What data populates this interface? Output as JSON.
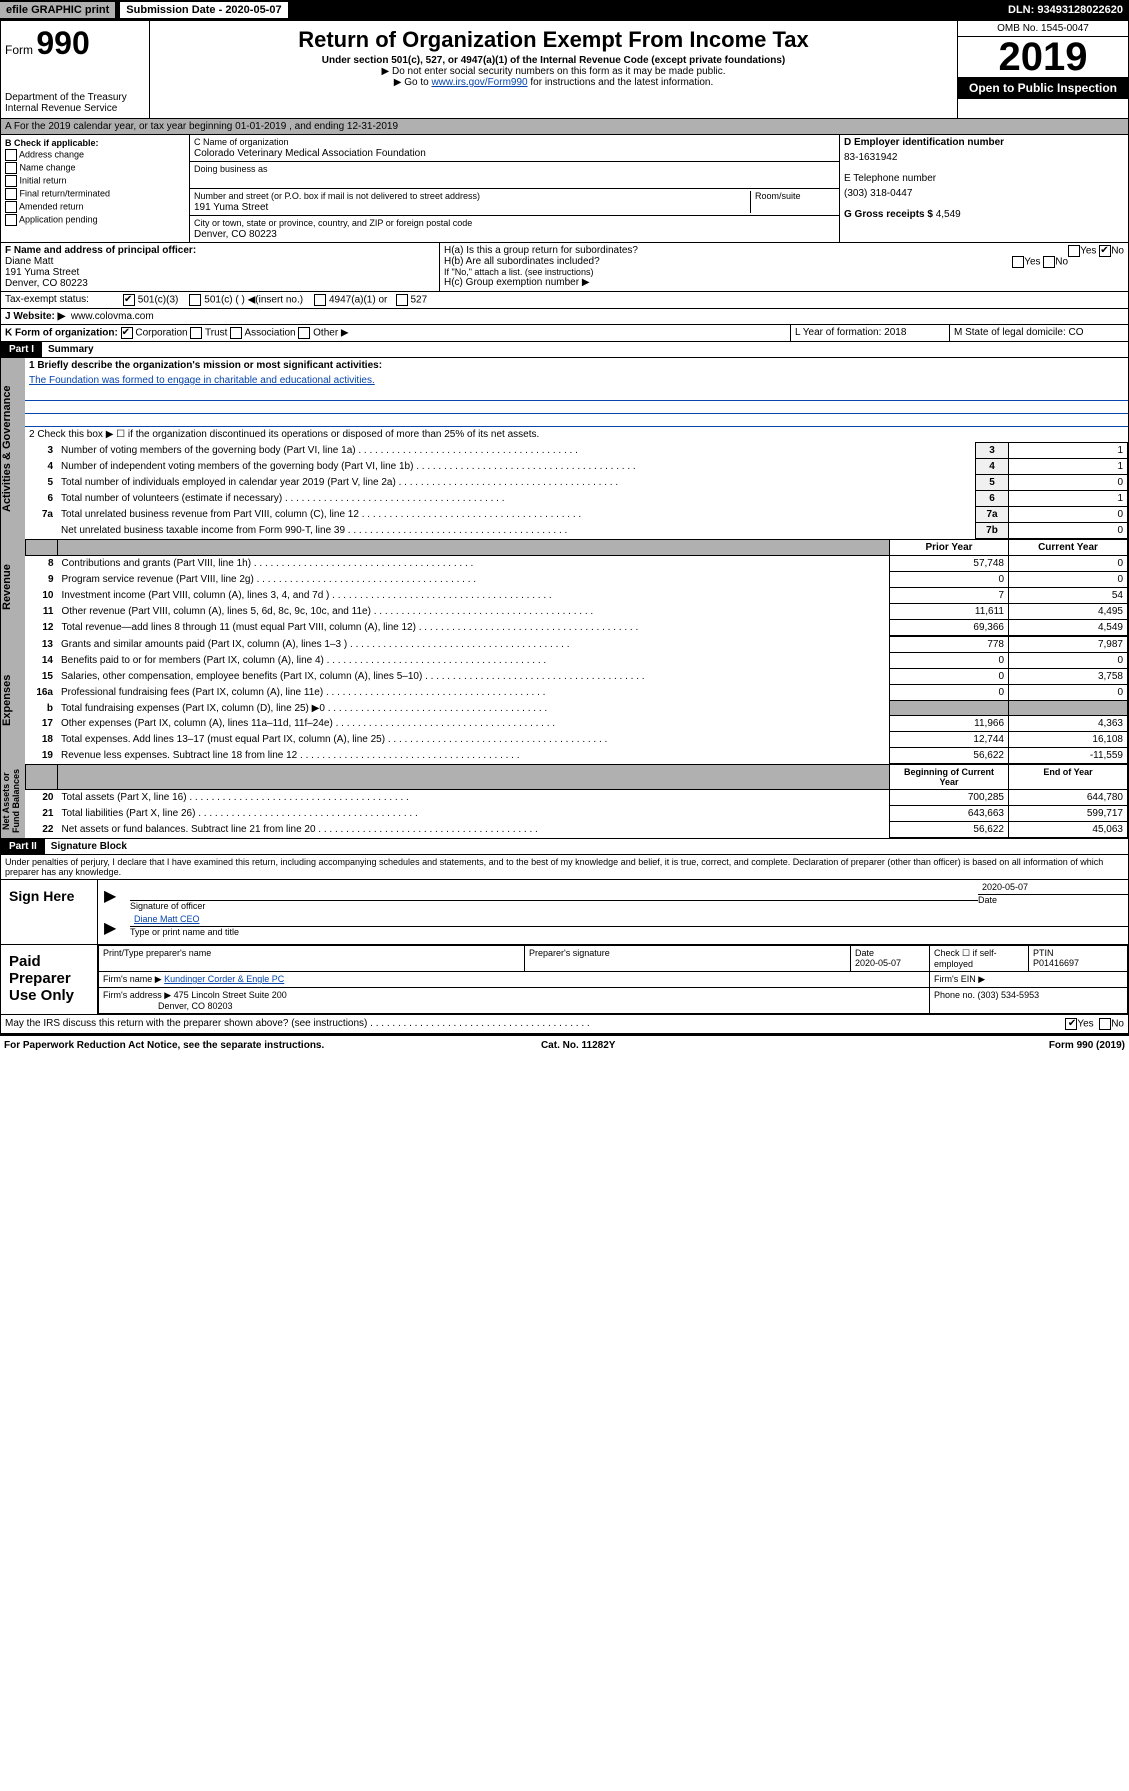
{
  "topbar": {
    "efile": "efile GRAPHIC print",
    "sub": "Submission Date - 2020-05-07",
    "dln": "DLN: 93493128022620"
  },
  "header": {
    "form": "Form",
    "num": "990",
    "dept": "Department of the Treasury\nInternal Revenue Service",
    "title": "Return of Organization Exempt From Income Tax",
    "sub1": "Under section 501(c), 527, or 4947(a)(1) of the Internal Revenue Code (except private foundations)",
    "sub2": "▶ Do not enter social security numbers on this form as it may be made public.",
    "sub3": "▶ Go to www.irs.gov/Form990 for instructions and the latest information.",
    "omb": "OMB No. 1545-0047",
    "year": "2019",
    "open": "Open to Public Inspection"
  },
  "A": {
    "text": "A For the 2019 calendar year, or tax year beginning 01-01-2019   , and ending 12-31-2019"
  },
  "B": {
    "label": "B Check if applicable:",
    "opts": [
      "Address change",
      "Name change",
      "Initial return",
      "Final return/terminated",
      "Amended return",
      "Application pending"
    ]
  },
  "C": {
    "nameLabel": "C Name of organization",
    "name": "Colorado Veterinary Medical Association Foundation",
    "dbaLabel": "Doing business as",
    "dba": "",
    "addrLabel": "Number and street (or P.O. box if mail is not delivered to street address)",
    "room": "Room/suite",
    "addr": "191 Yuma Street",
    "cityLabel": "City or town, state or province, country, and ZIP or foreign postal code",
    "city": "Denver, CO  80223"
  },
  "D": {
    "label": "D Employer identification number",
    "val": "83-1631942"
  },
  "E": {
    "label": "E Telephone number",
    "val": "(303) 318-0447"
  },
  "G": {
    "label": "G Gross receipts $",
    "val": "4,549"
  },
  "F": {
    "label": "F  Name and address of principal officer:",
    "name": "Diane Matt",
    "addr": "191 Yuma Street",
    "city": "Denver, CO  80223"
  },
  "H": {
    "a": "H(a)  Is this a group return for subordinates?",
    "aYes": "Yes",
    "aNo": "No",
    "b": "H(b)  Are all subordinates included?",
    "bYes": "Yes",
    "bNo": "No",
    "bnote": "If \"No,\" attach a list. (see instructions)",
    "c": "H(c)  Group exemption number ▶"
  },
  "I": {
    "label": "Tax-exempt status:",
    "o1": "501(c)(3)",
    "o2": "501(c) (  ) ◀(insert no.)",
    "o3": "4947(a)(1) or",
    "o4": "527"
  },
  "J": {
    "label": "J Website: ▶",
    "val": "www.colovma.com"
  },
  "K": {
    "label": "K Form of organization:",
    "o1": "Corporation",
    "o2": "Trust",
    "o3": "Association",
    "o4": "Other ▶"
  },
  "L": {
    "label": "L Year of formation: 2018"
  },
  "M": {
    "label": "M State of legal domicile: CO"
  },
  "partI": {
    "hdr": "Part I",
    "title": "Summary"
  },
  "s1": {
    "l1": "1  Briefly describe the organization's mission or most significant activities:",
    "l1v": "The Foundation was formed to engage in charitable and educational activities.",
    "l2": "2   Check this box ▶ ☐  if the organization discontinued its operations or disposed of more than 25% of its net assets.",
    "rows": [
      {
        "n": "3",
        "t": "Number of voting members of the governing body (Part VI, line 1a)",
        "b": "3",
        "v": "1"
      },
      {
        "n": "4",
        "t": "Number of independent voting members of the governing body (Part VI, line 1b)",
        "b": "4",
        "v": "1"
      },
      {
        "n": "5",
        "t": "Total number of individuals employed in calendar year 2019 (Part V, line 2a)",
        "b": "5",
        "v": "0"
      },
      {
        "n": "6",
        "t": "Total number of volunteers (estimate if necessary)",
        "b": "6",
        "v": "1"
      },
      {
        "n": "7a",
        "t": "Total unrelated business revenue from Part VIII, column (C), line 12",
        "b": "7a",
        "v": "0"
      },
      {
        "n": "",
        "t": "Net unrelated business taxable income from Form 990-T, line 39",
        "b": "7b",
        "v": "0"
      }
    ]
  },
  "pycy": {
    "h1": "Prior Year",
    "h2": "Current Year"
  },
  "rev": [
    {
      "n": "8",
      "t": "Contributions and grants (Part VIII, line 1h)",
      "p": "57,748",
      "c": "0"
    },
    {
      "n": "9",
      "t": "Program service revenue (Part VIII, line 2g)",
      "p": "0",
      "c": "0"
    },
    {
      "n": "10",
      "t": "Investment income (Part VIII, column (A), lines 3, 4, and 7d )",
      "p": "7",
      "c": "54"
    },
    {
      "n": "11",
      "t": "Other revenue (Part VIII, column (A), lines 5, 6d, 8c, 9c, 10c, and 11e)",
      "p": "11,611",
      "c": "4,495"
    },
    {
      "n": "12",
      "t": "Total revenue—add lines 8 through 11 (must equal Part VIII, column (A), line 12)",
      "p": "69,366",
      "c": "4,549"
    }
  ],
  "exp": [
    {
      "n": "13",
      "t": "Grants and similar amounts paid (Part IX, column (A), lines 1–3 )",
      "p": "778",
      "c": "7,987"
    },
    {
      "n": "14",
      "t": "Benefits paid to or for members (Part IX, column (A), line 4)",
      "p": "0",
      "c": "0"
    },
    {
      "n": "15",
      "t": "Salaries, other compensation, employee benefits (Part IX, column (A), lines 5–10)",
      "p": "0",
      "c": "3,758"
    },
    {
      "n": "16a",
      "t": "Professional fundraising fees (Part IX, column (A), line 11e)",
      "p": "0",
      "c": "0"
    },
    {
      "n": "b",
      "t": "Total fundraising expenses (Part IX, column (D), line 25) ▶0",
      "p": "",
      "c": "",
      "shade": true
    },
    {
      "n": "17",
      "t": "Other expenses (Part IX, column (A), lines 11a–11d, 11f–24e)",
      "p": "11,966",
      "c": "4,363"
    },
    {
      "n": "18",
      "t": "Total expenses. Add lines 13–17 (must equal Part IX, column (A), line 25)",
      "p": "12,744",
      "c": "16,108"
    },
    {
      "n": "19",
      "t": "Revenue less expenses. Subtract line 18 from line 12",
      "p": "56,622",
      "c": "-11,559"
    }
  ],
  "na": {
    "h1": "Beginning of Current Year",
    "h2": "End of Year"
  },
  "nar": [
    {
      "n": "20",
      "t": "Total assets (Part X, line 16)",
      "p": "700,285",
      "c": "644,780"
    },
    {
      "n": "21",
      "t": "Total liabilities (Part X, line 26)",
      "p": "643,663",
      "c": "599,717"
    },
    {
      "n": "22",
      "t": "Net assets or fund balances. Subtract line 21 from line 20",
      "p": "56,622",
      "c": "45,063"
    }
  ],
  "sideLabels": {
    "ag": "Activities & Governance",
    "rv": "Revenue",
    "ex": "Expenses",
    "na": "Net Assets or\nFund Balances"
  },
  "partII": {
    "hdr": "Part II",
    "title": "Signature Block"
  },
  "perjury": "Under penalties of perjury, I declare that I have examined this return, including accompanying schedules and statements, and to the best of my knowledge and belief, it is true, correct, and complete. Declaration of preparer (other than officer) is based on all information of which preparer has any knowledge.",
  "sign": {
    "here": "Sign Here",
    "sig": "Signature of officer",
    "date": "2020-05-07",
    "dateL": "Date",
    "name": "Diane Matt CEO",
    "nameL": "Type or print name and title"
  },
  "paid": {
    "side": "Paid Preparer Use Only",
    "h1": "Print/Type preparer's name",
    "h2": "Preparer's signature",
    "h3": "Date",
    "h3v": "2020-05-07",
    "h4": "Check ☐ if self-employed",
    "h5": "PTIN",
    "h5v": "P01416697",
    "firmL": "Firm's name    ▶",
    "firm": "Kundinger Corder & Engle PC",
    "einL": "Firm's EIN ▶",
    "addrL": "Firm's address ▶",
    "addr": "475 Lincoln Street Suite 200",
    "city": "Denver, CO  80203",
    "phoneL": "Phone no. (303) 534-5953"
  },
  "discuss": {
    "t": "May the IRS discuss this return with the preparer shown above? (see instructions)",
    "y": "Yes",
    "n": "No"
  },
  "footer": {
    "l": "For Paperwork Reduction Act Notice, see the separate instructions.",
    "c": "Cat. No. 11282Y",
    "r": "Form 990 (2019)"
  }
}
